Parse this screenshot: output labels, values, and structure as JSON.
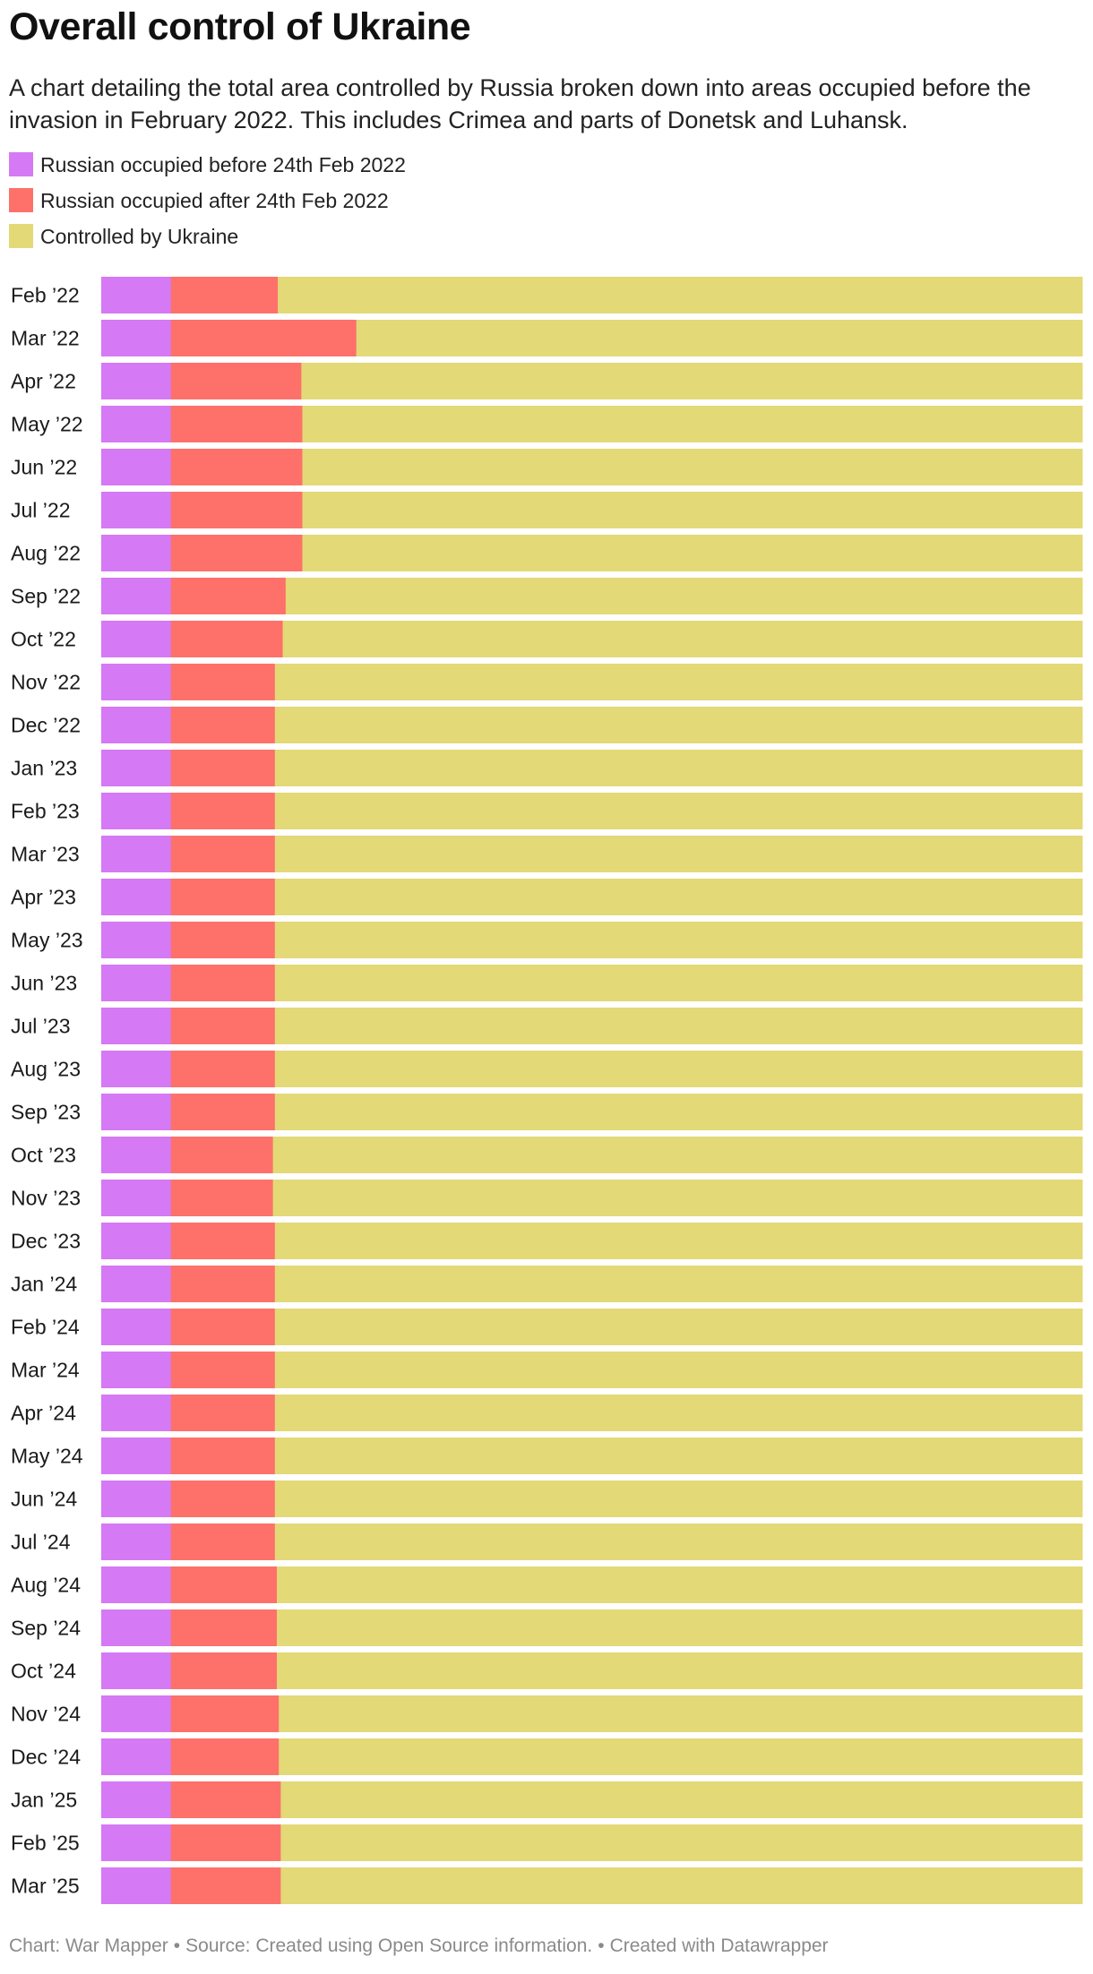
{
  "title": "Overall control of Ukraine",
  "subtitle": "A chart detailing the total area controlled by Russia broken down into areas occupied before the invasion in February 2022. This includes Crimea and parts of Donetsk and Luhansk.",
  "legend": [
    {
      "label": "Russian occupied before 24th Feb 2022",
      "color": "#d579f5"
    },
    {
      "label": "Russian occupied after 24th Feb 2022",
      "color": "#fd716a"
    },
    {
      "label": "Controlled by Ukraine",
      "color": "#e3d977"
    }
  ],
  "footer": {
    "chart_credit": "Chart: War Mapper",
    "source": "Source: Created using Open Source information.",
    "tool": "Created with Datawrapper",
    "separator": "•"
  },
  "chart_data": {
    "type": "bar",
    "orientation": "horizontal",
    "stacked": true,
    "normalized_to_percent": true,
    "xlim": [
      0,
      100
    ],
    "grid": false,
    "legend_position": "top",
    "categories": [
      "Feb ’22",
      "Mar ’22",
      "Apr ’22",
      "May ’22",
      "Jun ’22",
      "Jul ’22",
      "Aug ’22",
      "Sep ’22",
      "Oct ’22",
      "Nov ’22",
      "Dec ’22",
      "Jan ’23",
      "Feb ’23",
      "Mar ’23",
      "Apr ’23",
      "May ’23",
      "Jun ’23",
      "Jul ’23",
      "Aug ’23",
      "Sep ’23",
      "Oct ’23",
      "Nov ’23",
      "Dec ’23",
      "Jan ’24",
      "Feb ’24",
      "Mar ’24",
      "Apr ’24",
      "May ’24",
      "Jun ’24",
      "Jul ’24",
      "Aug ’24",
      "Sep ’24",
      "Oct ’24",
      "Nov ’24",
      "Dec ’24",
      "Jan ’25",
      "Feb ’25",
      "Mar ’25"
    ],
    "series": [
      {
        "name": "Russian occupied before 24th Feb 2022",
        "color": "#d579f5",
        "values": [
          7.1,
          7.1,
          7.1,
          7.1,
          7.1,
          7.1,
          7.1,
          7.1,
          7.1,
          7.1,
          7.1,
          7.1,
          7.1,
          7.1,
          7.1,
          7.1,
          7.1,
          7.1,
          7.1,
          7.1,
          7.1,
          7.1,
          7.1,
          7.1,
          7.1,
          7.1,
          7.1,
          7.1,
          7.1,
          7.1,
          7.1,
          7.1,
          7.1,
          7.1,
          7.1,
          7.1,
          7.1,
          7.1
        ]
      },
      {
        "name": "Russian occupied after 24th Feb 2022",
        "color": "#fd716a",
        "values": [
          10.9,
          18.9,
          13.3,
          13.4,
          13.4,
          13.4,
          13.4,
          11.7,
          11.4,
          10.6,
          10.6,
          10.6,
          10.6,
          10.6,
          10.6,
          10.6,
          10.6,
          10.6,
          10.6,
          10.6,
          10.4,
          10.4,
          10.6,
          10.6,
          10.6,
          10.6,
          10.6,
          10.6,
          10.6,
          10.6,
          10.8,
          10.8,
          10.8,
          11.0,
          11.0,
          11.2,
          11.2,
          11.2
        ]
      },
      {
        "name": "Controlled by Ukraine",
        "color": "#e3d977",
        "values": [
          82.0,
          74.0,
          79.6,
          79.5,
          79.5,
          79.5,
          79.5,
          81.2,
          81.5,
          82.3,
          82.3,
          82.3,
          82.3,
          82.3,
          82.3,
          82.3,
          82.3,
          82.3,
          82.3,
          82.3,
          82.5,
          82.5,
          82.3,
          82.3,
          82.3,
          82.3,
          82.3,
          82.3,
          82.3,
          82.3,
          82.1,
          82.1,
          82.1,
          81.9,
          81.9,
          81.7,
          81.7,
          81.7
        ]
      }
    ]
  }
}
